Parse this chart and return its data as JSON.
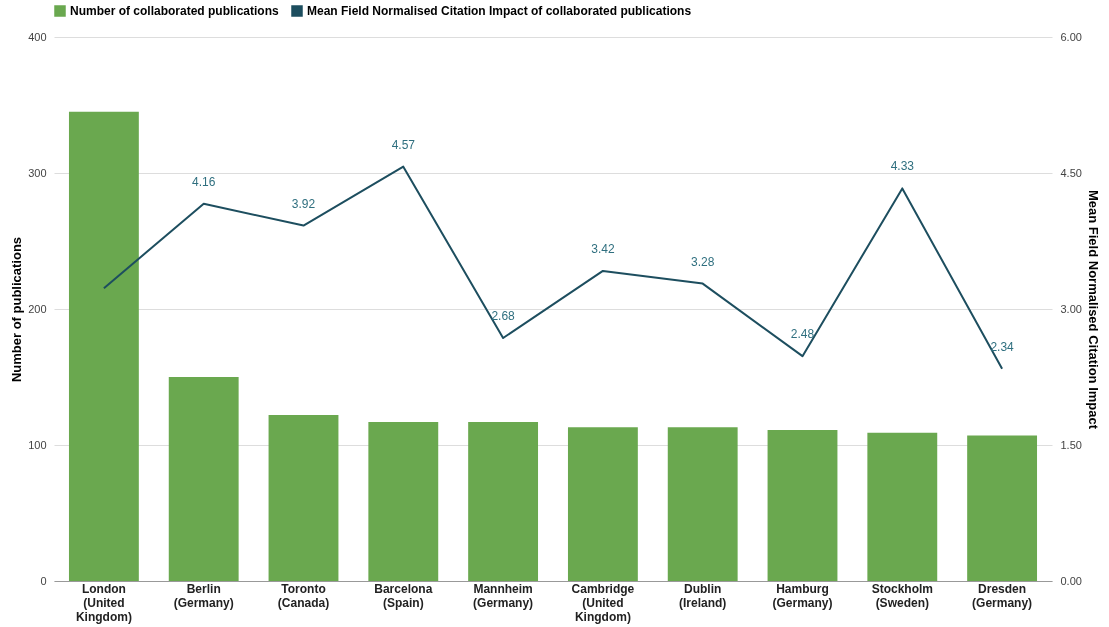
{
  "chart_data": {
    "type": "bar",
    "categories": [
      "London (United Kingdom)",
      "Berlin (Germany)",
      "Toronto (Canada)",
      "Barcelona (Spain)",
      "Mannheim (Germany)",
      "Cambridge (United Kingdom)",
      "Dublin (Ireland)",
      "Hamburg (Germany)",
      "Stockholm (Sweden)",
      "Dresden (Germany)"
    ],
    "series": [
      {
        "name": "Number of collaborated publications",
        "color": "#6aa84f",
        "values": [
          345,
          150,
          122,
          117,
          117,
          113,
          113,
          111,
          109,
          107
        ]
      },
      {
        "name": "Mean Field Normalised Citation Impact of collaborated publications",
        "type": "line",
        "axis": "y2",
        "color": "#1d4e5f",
        "values": [
          3.23,
          4.16,
          3.92,
          4.57,
          2.68,
          3.42,
          3.28,
          2.48,
          4.33,
          2.34
        ],
        "value_labels": [
          null,
          "4.16",
          "3.92",
          "4.57",
          "2.68",
          "3.42",
          "3.28",
          "2.48",
          "4.33",
          "2.34"
        ]
      }
    ],
    "ylabel": "Number of publications",
    "y2label": "Mean Field Normalised Citation Impact",
    "ylim": [
      0,
      400
    ],
    "yticks": [
      0,
      100,
      200,
      300,
      400
    ],
    "y2lim": [
      0,
      6
    ],
    "y2ticks": [
      {
        "value": 0,
        "label": "0.00"
      },
      {
        "value": 1.5,
        "label": "1.50"
      },
      {
        "value": 3,
        "label": "3.00"
      },
      {
        "value": 4.5,
        "label": "4.50"
      },
      {
        "value": 6,
        "label": "6.00"
      }
    ],
    "grid": "y",
    "legend": "top",
    "marker": "none"
  }
}
